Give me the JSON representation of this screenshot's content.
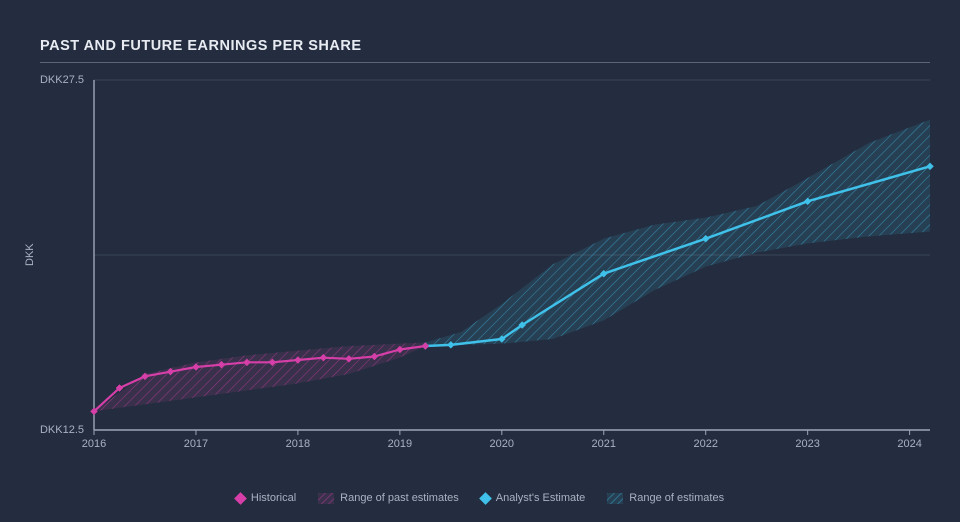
{
  "title": "PAST AND FUTURE EARNINGS PER SHARE",
  "chart": {
    "type": "line-with-range",
    "background_color": "#232d3f",
    "grid_color": "#3a4558",
    "axis_color": "#9ca6b8",
    "text_color": "#a8b2c2",
    "title_color": "#e8ecf2",
    "title_fontsize": 14.5,
    "label_fontsize": 11,
    "y_axis": {
      "label": "DKK",
      "min": 12.5,
      "max": 27.5,
      "ticks": [
        {
          "value": 12.5,
          "label": "DKK12.5"
        },
        {
          "value": 27.5,
          "label": "DKK27.5"
        }
      ],
      "mid_gridline_value": 20.0
    },
    "x_axis": {
      "min": 2016,
      "max": 2024.2,
      "ticks": [
        {
          "value": 2016,
          "label": "2016"
        },
        {
          "value": 2017,
          "label": "2017"
        },
        {
          "value": 2018,
          "label": "2018"
        },
        {
          "value": 2019,
          "label": "2019"
        },
        {
          "value": 2020,
          "label": "2020"
        },
        {
          "value": 2021,
          "label": "2021"
        },
        {
          "value": 2022,
          "label": "2022"
        },
        {
          "value": 2023,
          "label": "2023"
        },
        {
          "value": 2024,
          "label": "2024"
        }
      ]
    },
    "series": {
      "historical": {
        "label": "Historical",
        "color": "#d63fa8",
        "marker": "diamond",
        "marker_size": 7,
        "line_width": 2.2,
        "points": [
          {
            "x": 2016.0,
            "y": 13.3
          },
          {
            "x": 2016.25,
            "y": 14.3
          },
          {
            "x": 2016.5,
            "y": 14.8
          },
          {
            "x": 2016.75,
            "y": 15.0
          },
          {
            "x": 2017.0,
            "y": 15.2
          },
          {
            "x": 2017.25,
            "y": 15.3
          },
          {
            "x": 2017.5,
            "y": 15.4
          },
          {
            "x": 2017.75,
            "y": 15.4
          },
          {
            "x": 2018.0,
            "y": 15.5
          },
          {
            "x": 2018.25,
            "y": 15.6
          },
          {
            "x": 2018.5,
            "y": 15.55
          },
          {
            "x": 2018.75,
            "y": 15.65
          },
          {
            "x": 2019.0,
            "y": 15.95
          },
          {
            "x": 2019.25,
            "y": 16.1
          }
        ]
      },
      "past_range": {
        "label": "Range of past estimates",
        "fill_color": "#d63fa8",
        "fill_opacity": 0.28,
        "hatch": true,
        "upper": [
          {
            "x": 2016.0,
            "y": 13.3
          },
          {
            "x": 2016.5,
            "y": 14.9
          },
          {
            "x": 2017.0,
            "y": 15.4
          },
          {
            "x": 2017.5,
            "y": 15.7
          },
          {
            "x": 2018.0,
            "y": 15.9
          },
          {
            "x": 2018.5,
            "y": 16.1
          },
          {
            "x": 2019.0,
            "y": 16.2
          },
          {
            "x": 2019.25,
            "y": 16.25
          }
        ],
        "lower": [
          {
            "x": 2016.0,
            "y": 13.3
          },
          {
            "x": 2016.5,
            "y": 13.6
          },
          {
            "x": 2017.0,
            "y": 13.9
          },
          {
            "x": 2017.5,
            "y": 14.2
          },
          {
            "x": 2018.0,
            "y": 14.5
          },
          {
            "x": 2018.5,
            "y": 14.9
          },
          {
            "x": 2019.0,
            "y": 15.6
          },
          {
            "x": 2019.25,
            "y": 16.1
          }
        ]
      },
      "estimate": {
        "label": "Analyst's Estimate",
        "color": "#3fc1ea",
        "marker": "diamond",
        "marker_size": 7,
        "line_width": 2.5,
        "points": [
          {
            "x": 2019.25,
            "y": 16.1
          },
          {
            "x": 2019.5,
            "y": 16.15
          },
          {
            "x": 2020.0,
            "y": 16.4
          },
          {
            "x": 2020.2,
            "y": 17.0
          },
          {
            "x": 2021.0,
            "y": 19.2
          },
          {
            "x": 2022.0,
            "y": 20.7
          },
          {
            "x": 2023.0,
            "y": 22.3
          },
          {
            "x": 2024.2,
            "y": 23.8
          }
        ]
      },
      "future_range": {
        "label": "Range of estimates",
        "fill_color": "#3fc1ea",
        "fill_opacity": 0.28,
        "hatch": true,
        "upper": [
          {
            "x": 2019.25,
            "y": 16.25
          },
          {
            "x": 2019.6,
            "y": 16.7
          },
          {
            "x": 2020.0,
            "y": 17.9
          },
          {
            "x": 2020.5,
            "y": 19.6
          },
          {
            "x": 2021.0,
            "y": 20.7
          },
          {
            "x": 2021.5,
            "y": 21.3
          },
          {
            "x": 2022.0,
            "y": 21.6
          },
          {
            "x": 2022.5,
            "y": 22.1
          },
          {
            "x": 2023.0,
            "y": 23.3
          },
          {
            "x": 2023.6,
            "y": 24.8
          },
          {
            "x": 2024.2,
            "y": 25.8
          }
        ],
        "lower": [
          {
            "x": 2019.25,
            "y": 16.1
          },
          {
            "x": 2020.0,
            "y": 16.2
          },
          {
            "x": 2020.5,
            "y": 16.4
          },
          {
            "x": 2021.0,
            "y": 17.2
          },
          {
            "x": 2021.5,
            "y": 18.5
          },
          {
            "x": 2022.0,
            "y": 19.5
          },
          {
            "x": 2022.5,
            "y": 20.1
          },
          {
            "x": 2023.0,
            "y": 20.5
          },
          {
            "x": 2023.6,
            "y": 20.8
          },
          {
            "x": 2024.2,
            "y": 21.0
          }
        ]
      }
    },
    "legend": [
      {
        "type": "marker",
        "color": "#d63fa8",
        "label": "Historical"
      },
      {
        "type": "hatch",
        "color": "#d63fa8",
        "label": "Range of past estimates"
      },
      {
        "type": "marker",
        "color": "#3fc1ea",
        "label": "Analyst's Estimate"
      },
      {
        "type": "hatch",
        "color": "#3fc1ea",
        "label": "Range of estimates"
      }
    ]
  }
}
